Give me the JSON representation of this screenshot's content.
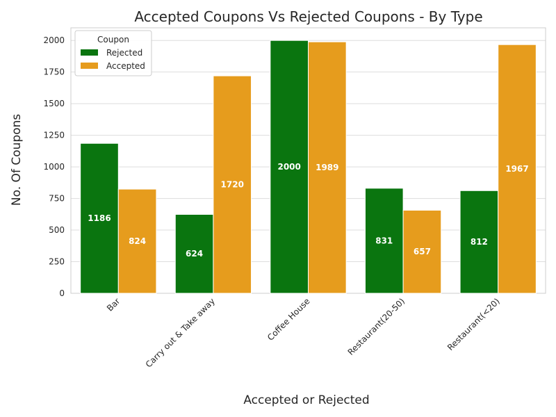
{
  "chart_data": {
    "type": "bar",
    "title": "Accepted Coupons Vs Rejected Coupons - By Type",
    "xlabel": "Accepted or Rejected",
    "ylabel": "No. Of Coupons",
    "categories": [
      "Bar",
      "Carry out & Take away",
      "Coffee House",
      "Restaurant(20-50)",
      "Restaurant(<20)"
    ],
    "series": [
      {
        "name": "Rejected",
        "color": "#0a750f",
        "values": [
          1186,
          624,
          2000,
          831,
          812
        ]
      },
      {
        "name": "Accepted",
        "color": "#e69c1d",
        "values": [
          824,
          1720,
          1989,
          657,
          1967
        ]
      }
    ],
    "ylim": [
      0,
      2100
    ],
    "yticks": [
      0,
      250,
      500,
      750,
      1000,
      1250,
      1500,
      1750,
      2000
    ],
    "grid": true,
    "legend": {
      "title": "Coupon",
      "placement": "top-left"
    }
  }
}
